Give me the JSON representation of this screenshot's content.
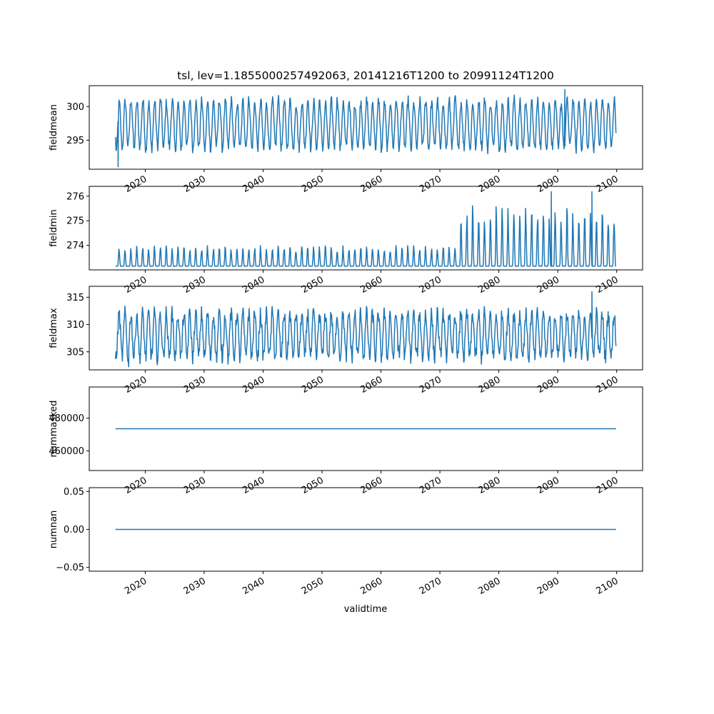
{
  "title": "tsl, lev=1.1855000257492063, 20141216T1200 to 20991124T1200",
  "xlabel": "validtime",
  "colors": {
    "series": "#1f77b4",
    "frame": "#000000",
    "background": "#ffffff"
  },
  "chart_data": [
    {
      "type": "line",
      "ylabel": "fieldmean",
      "x_range": [
        "2014-12-16",
        "2099-11-24"
      ],
      "xlim": [
        2010.5,
        2104.4
      ],
      "ylim": [
        290.7,
        303.1
      ],
      "yticks": [
        295,
        300
      ],
      "xticks": [
        2020,
        2030,
        2040,
        2050,
        2060,
        2070,
        2080,
        2090,
        2100
      ],
      "grid": false,
      "series": [
        {
          "frequency": "monthly",
          "seasonal_cycle": true,
          "approx_min": 291.0,
          "approx_max": 302.6,
          "typical_low": 293.5,
          "typical_high": 300.5
        }
      ]
    },
    {
      "type": "line",
      "ylabel": "fieldmin",
      "x_range": [
        "2014-12-16",
        "2099-11-24"
      ],
      "xlim": [
        2010.5,
        2104.4
      ],
      "ylim": [
        273.0,
        276.4
      ],
      "yticks": [
        274,
        275,
        276
      ],
      "xticks": [
        2020,
        2030,
        2040,
        2050,
        2060,
        2070,
        2080,
        2090,
        2100
      ],
      "grid": false,
      "series": [
        {
          "frequency": "monthly",
          "seasonal_cycle": true,
          "baseline": 273.15,
          "typical_peak_before_2074": 273.9,
          "typical_peak_after_2074": 275.3,
          "approx_max": 276.2
        }
      ]
    },
    {
      "type": "line",
      "ylabel": "fieldmax",
      "x_range": [
        "2014-12-16",
        "2099-11-24"
      ],
      "xlim": [
        2010.5,
        2104.4
      ],
      "ylim": [
        301.7,
        317.0
      ],
      "yticks": [
        305,
        310,
        315
      ],
      "xticks": [
        2020,
        2030,
        2040,
        2050,
        2060,
        2070,
        2080,
        2090,
        2100
      ],
      "grid": false,
      "series": [
        {
          "frequency": "monthly",
          "seasonal_cycle": true,
          "approx_min": 302.2,
          "approx_max": 316.1,
          "typical_low": 304.0,
          "typical_high": 312.0
        }
      ]
    },
    {
      "type": "line",
      "ylabel": "nummasked",
      "x_range": [
        "2014-12-16",
        "2099-11-24"
      ],
      "xlim": [
        2010.5,
        2104.4
      ],
      "ylim": [
        448000,
        499000
      ],
      "yticks": [
        460000,
        480000
      ],
      "xticks": [
        2020,
        2030,
        2040,
        2050,
        2060,
        2070,
        2080,
        2090,
        2100
      ],
      "grid": false,
      "series": [
        {
          "constant": 473500
        }
      ]
    },
    {
      "type": "line",
      "ylabel": "numnan",
      "x_range": [
        "2014-12-16",
        "2099-11-24"
      ],
      "xlim": [
        2010.5,
        2104.4
      ],
      "ylim": [
        -0.055,
        0.055
      ],
      "yticks": [
        -0.05,
        0.0,
        0.05
      ],
      "ytick_labels": [
        "−0.05",
        "0.00",
        "0.05"
      ],
      "xticks": [
        2020,
        2030,
        2040,
        2050,
        2060,
        2070,
        2080,
        2090,
        2100
      ],
      "grid": false,
      "series": [
        {
          "constant": 0
        }
      ]
    }
  ]
}
